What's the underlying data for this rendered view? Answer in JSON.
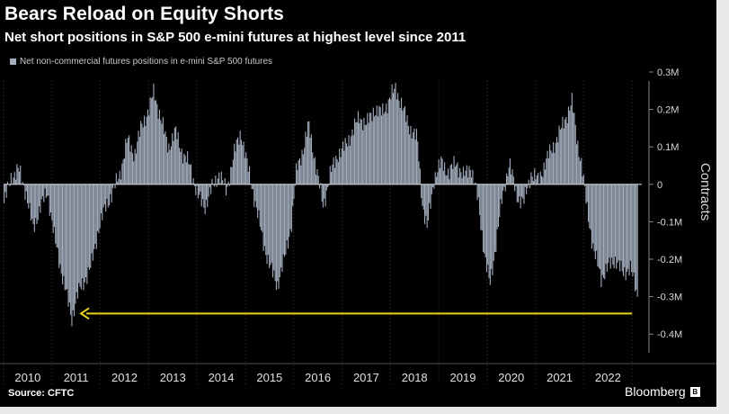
{
  "title": "Bears Reload on Equity Shorts",
  "subtitle": "Net short positions in S&P 500 e-mini futures at highest level since 2011",
  "source": "Source: CFTC",
  "brand": "Bloomberg",
  "brand_badge_icon": "bloomberg-terminal-icon",
  "colors": {
    "background": "#000000",
    "bars": "#a3adbe",
    "arrow": "#e8d21a",
    "text": "#ffffff",
    "zero_line": "#d0d0d0"
  },
  "chart_data": {
    "type": "bar",
    "legend": "Net non-commercial futures positions in e-mini S&P 500 futures",
    "legend_position": "top-left",
    "ylabel": "Contracts",
    "ylim": [
      -0.45,
      0.3
    ],
    "yticks": [
      {
        "value": 0.3,
        "label": "0.3M"
      },
      {
        "value": 0.2,
        "label": "0.2M"
      },
      {
        "value": 0.1,
        "label": "0.1M"
      },
      {
        "value": 0,
        "label": "0"
      },
      {
        "value": -0.1,
        "label": "-0.1M"
      },
      {
        "value": -0.2,
        "label": "-0.2M"
      },
      {
        "value": -0.3,
        "label": "-0.3M"
      },
      {
        "value": -0.4,
        "label": "-0.4M"
      }
    ],
    "xlim": [
      2010,
      2023.2
    ],
    "xticks": [
      "2010",
      "2011",
      "2012",
      "2013",
      "2014",
      "2015",
      "2016",
      "2017",
      "2018",
      "2019",
      "2020",
      "2021",
      "2022"
    ],
    "grid": "vertical-dotted",
    "series": [
      {
        "points": [
          [
            2010.0,
            -0.05
          ],
          [
            2010.15,
            0.02
          ],
          [
            2010.3,
            0.04
          ],
          [
            2010.45,
            -0.02
          ],
          [
            2010.6,
            -0.12
          ],
          [
            2010.75,
            -0.06
          ],
          [
            2010.9,
            -0.02
          ],
          [
            2011.05,
            -0.15
          ],
          [
            2011.2,
            -0.24
          ],
          [
            2011.3,
            -0.3
          ],
          [
            2011.4,
            -0.36
          ],
          [
            2011.5,
            -0.3
          ],
          [
            2011.65,
            -0.26
          ],
          [
            2011.8,
            -0.22
          ],
          [
            2011.95,
            -0.12
          ],
          [
            2012.1,
            -0.06
          ],
          [
            2012.25,
            -0.02
          ],
          [
            2012.4,
            0.03
          ],
          [
            2012.55,
            0.12
          ],
          [
            2012.7,
            0.08
          ],
          [
            2012.85,
            0.16
          ],
          [
            2013.0,
            0.2
          ],
          [
            2013.1,
            0.25
          ],
          [
            2013.25,
            0.17
          ],
          [
            2013.4,
            0.1
          ],
          [
            2013.55,
            0.14
          ],
          [
            2013.7,
            0.08
          ],
          [
            2013.85,
            0.05
          ],
          [
            2014.0,
            -0.03
          ],
          [
            2014.15,
            -0.06
          ],
          [
            2014.3,
            -0.01
          ],
          [
            2014.45,
            0.03
          ],
          [
            2014.6,
            -0.02
          ],
          [
            2014.75,
            0.08
          ],
          [
            2014.9,
            0.14
          ],
          [
            2015.05,
            0.04
          ],
          [
            2015.2,
            -0.05
          ],
          [
            2015.35,
            -0.15
          ],
          [
            2015.5,
            -0.22
          ],
          [
            2015.65,
            -0.27
          ],
          [
            2015.8,
            -0.2
          ],
          [
            2015.95,
            -0.1
          ],
          [
            2016.05,
            0.04
          ],
          [
            2016.2,
            0.1
          ],
          [
            2016.3,
            0.16
          ],
          [
            2016.45,
            0.05
          ],
          [
            2016.6,
            -0.06
          ],
          [
            2016.75,
            0.03
          ],
          [
            2016.9,
            0.08
          ],
          [
            2017.05,
            0.1
          ],
          [
            2017.2,
            0.14
          ],
          [
            2017.35,
            0.18
          ],
          [
            2017.5,
            0.16
          ],
          [
            2017.65,
            0.2
          ],
          [
            2017.8,
            0.19
          ],
          [
            2017.95,
            0.22
          ],
          [
            2018.1,
            0.26
          ],
          [
            2018.25,
            0.2
          ],
          [
            2018.4,
            0.15
          ],
          [
            2018.55,
            0.12
          ],
          [
            2018.65,
            -0.05
          ],
          [
            2018.75,
            -0.12
          ],
          [
            2018.9,
            0.02
          ],
          [
            2019.05,
            0.06
          ],
          [
            2019.2,
            0.03
          ],
          [
            2019.35,
            0.06
          ],
          [
            2019.5,
            0.02
          ],
          [
            2019.65,
            0.05
          ],
          [
            2019.8,
            -0.04
          ],
          [
            2019.95,
            -0.2
          ],
          [
            2020.05,
            -0.27
          ],
          [
            2020.15,
            -0.18
          ],
          [
            2020.3,
            -0.04
          ],
          [
            2020.45,
            0.06
          ],
          [
            2020.6,
            -0.03
          ],
          [
            2020.75,
            -0.05
          ],
          [
            2020.9,
            0.03
          ],
          [
            2021.05,
            0.01
          ],
          [
            2021.2,
            0.06
          ],
          [
            2021.35,
            0.1
          ],
          [
            2021.5,
            0.14
          ],
          [
            2021.65,
            0.19
          ],
          [
            2021.75,
            0.22
          ],
          [
            2021.85,
            0.12
          ],
          [
            2021.95,
            0.05
          ],
          [
            2022.05,
            -0.06
          ],
          [
            2022.2,
            -0.18
          ],
          [
            2022.35,
            -0.25
          ],
          [
            2022.5,
            -0.22
          ],
          [
            2022.65,
            -0.2
          ],
          [
            2022.8,
            -0.24
          ],
          [
            2022.95,
            -0.22
          ],
          [
            2023.1,
            -0.3
          ]
        ]
      }
    ],
    "annotations": [
      {
        "type": "arrow",
        "direction": "left",
        "from_x": 2023.0,
        "to_x": 2011.6,
        "y": -0.345
      }
    ]
  }
}
